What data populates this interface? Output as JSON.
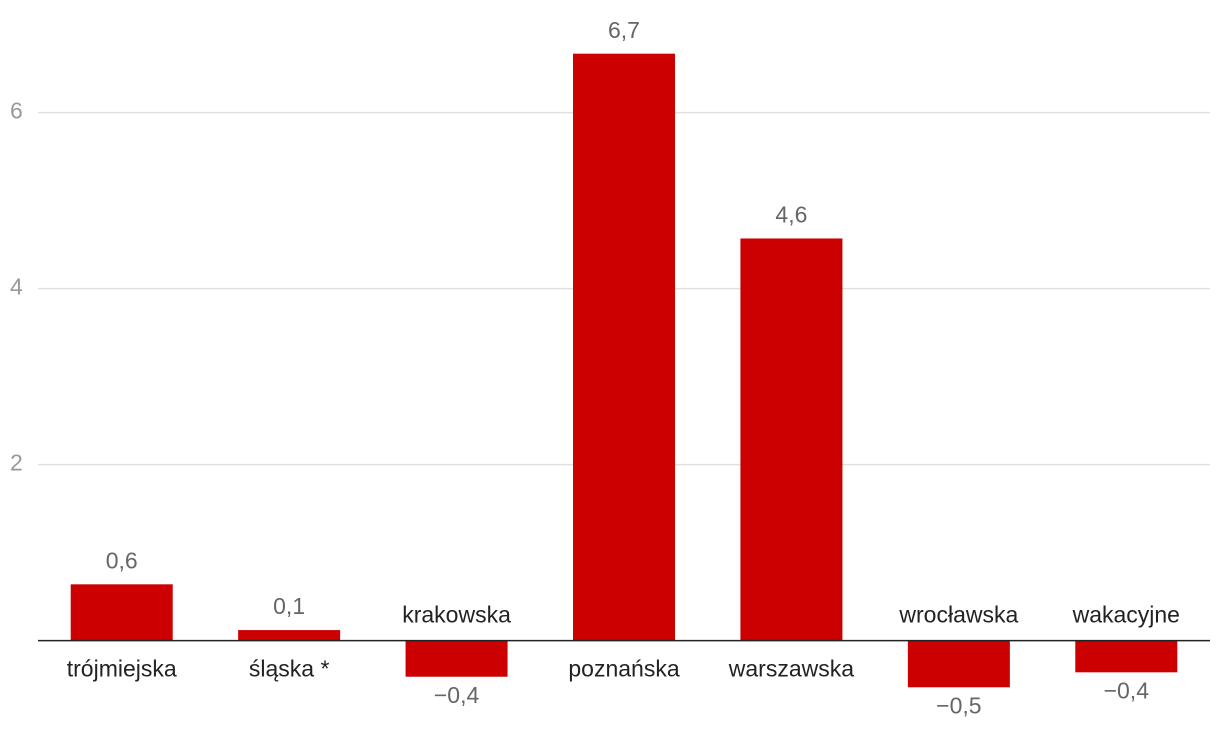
{
  "chart_data": {
    "type": "bar",
    "categories": [
      "trójmiejska",
      "śląska *",
      "krakowska",
      "poznańska",
      "warszawska",
      "wrocławska",
      "wakacyjne"
    ],
    "values": [
      0.64,
      0.12,
      -0.41,
      6.67,
      4.57,
      -0.53,
      -0.36
    ],
    "value_labels": [
      "0,6",
      "0,1",
      "−0,4",
      "6,7",
      "4,6",
      "−0,5",
      "−0,4"
    ],
    "color": "#cc0000",
    "ylim": [
      -1.22,
      7.28
    ],
    "yticks": [
      2,
      4,
      6
    ],
    "grid": true
  }
}
